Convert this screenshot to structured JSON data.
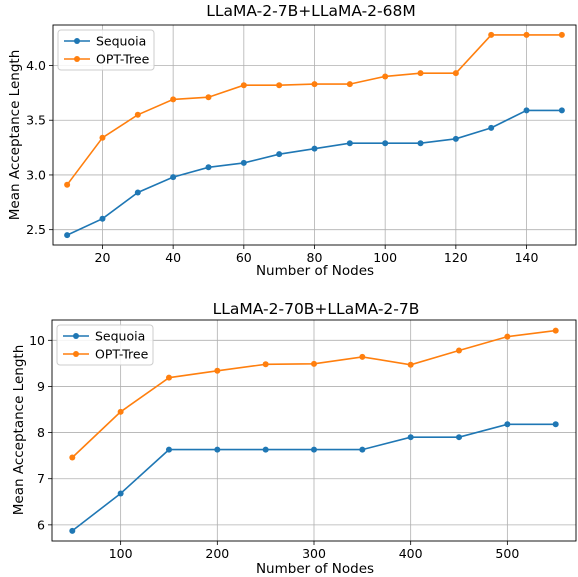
{
  "chart_data": [
    {
      "type": "line",
      "title": "LLaMA-2-7B+LLaMA-2-68M",
      "xlabel": "Number of Nodes",
      "ylabel": "Mean Acceptance Length",
      "x": [
        10,
        20,
        30,
        40,
        50,
        60,
        70,
        80,
        90,
        100,
        110,
        120,
        130,
        140,
        150
      ],
      "xlim": [
        6,
        154
      ],
      "ylim": [
        2.36,
        4.37
      ],
      "xticks": [
        20,
        40,
        60,
        80,
        100,
        120,
        140
      ],
      "yticks": [
        2.5,
        3.0,
        3.5,
        4.0
      ],
      "ytick_labels": [
        "2.5",
        "3.0",
        "3.5",
        "4.0"
      ],
      "grid": true,
      "legend_position": "top-left",
      "series": [
        {
          "name": "Sequoia",
          "color": "#1f77b4",
          "values": [
            2.45,
            2.6,
            2.84,
            2.98,
            3.07,
            3.11,
            3.19,
            3.24,
            3.29,
            3.29,
            3.29,
            3.33,
            3.43,
            3.59,
            3.59
          ]
        },
        {
          "name": "OPT-Tree",
          "color": "#ff7f0e",
          "values": [
            2.91,
            3.34,
            3.55,
            3.69,
            3.71,
            3.82,
            3.82,
            3.83,
            3.83,
            3.9,
            3.93,
            3.93,
            4.28,
            4.28,
            4.28
          ]
        }
      ]
    },
    {
      "type": "line",
      "title": "LLaMA-2-70B+LLaMA-2-7B",
      "xlabel": "Number of Nodes",
      "ylabel": "Mean Acceptance Length",
      "x": [
        50,
        100,
        150,
        200,
        250,
        300,
        350,
        400,
        450,
        500,
        550
      ],
      "xlim": [
        29,
        571
      ],
      "ylim": [
        5.65,
        10.44
      ],
      "xticks": [
        100,
        200,
        300,
        400,
        500
      ],
      "yticks": [
        6,
        7,
        8,
        9,
        10
      ],
      "ytick_labels": [
        "6",
        "7",
        "8",
        "9",
        "10"
      ],
      "grid": true,
      "legend_position": "top-left",
      "series": [
        {
          "name": "Sequoia",
          "color": "#1f77b4",
          "values": [
            5.87,
            6.68,
            7.63,
            7.63,
            7.63,
            7.63,
            7.63,
            7.9,
            7.9,
            8.18,
            8.18
          ]
        },
        {
          "name": "OPT-Tree",
          "color": "#ff7f0e",
          "values": [
            7.46,
            8.45,
            9.19,
            9.34,
            9.48,
            9.49,
            9.64,
            9.47,
            9.78,
            10.08,
            10.21
          ]
        }
      ]
    }
  ]
}
